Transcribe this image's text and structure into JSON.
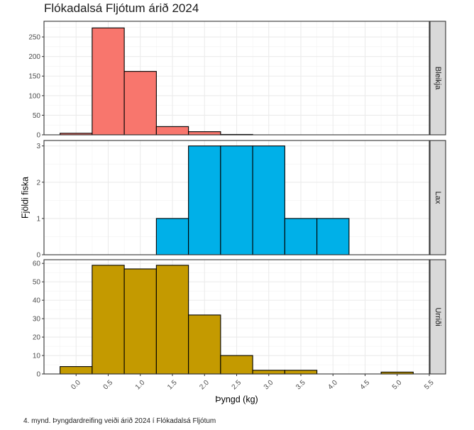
{
  "title": "Flókadalsá Fljótum árið 2024",
  "caption": "4. mynd. Þyngdardreifing veiði árið 2024 í Flókadalsá Fljótum",
  "chart_data": {
    "type": "bar",
    "title": "Flókadalsá Fljótum árið 2024",
    "xlabel": "Þyngd (kg)",
    "ylabel": "Fjöldi fiska",
    "xlim": [
      -0.5,
      5.5
    ],
    "x_ticks": [
      "0.0",
      "0.5",
      "1.0",
      "1.5",
      "2.0",
      "2.5",
      "3.0",
      "3.5",
      "4.0",
      "4.5",
      "5.0",
      "5.5"
    ],
    "bin_width": 0.5,
    "bin_centers": [
      0,
      0.5,
      1,
      1.5,
      2,
      2.5,
      3,
      3.5,
      4,
      4.5,
      5
    ],
    "grid": true,
    "facets": [
      {
        "name": "Bleikja",
        "color": "#F8766D",
        "ylim": [
          0,
          290
        ],
        "y_ticks": [
          0,
          50,
          100,
          150,
          200,
          250
        ],
        "values": [
          4,
          273,
          162,
          21,
          8,
          1,
          0,
          0,
          0,
          0,
          0
        ]
      },
      {
        "name": "Lax",
        "color": "#00B0E8",
        "ylim": [
          0,
          3.15
        ],
        "y_ticks": [
          0,
          1,
          2,
          3
        ],
        "values": [
          0,
          0,
          0,
          1,
          3,
          3,
          3,
          1,
          1,
          0,
          0
        ]
      },
      {
        "name": "Urriði",
        "color": "#C49A00",
        "ylim": [
          0,
          62
        ],
        "y_ticks": [
          0,
          10,
          20,
          30,
          40,
          50,
          60
        ],
        "values": [
          4,
          59,
          57,
          59,
          32,
          10,
          2,
          2,
          0,
          0,
          1
        ]
      }
    ]
  }
}
